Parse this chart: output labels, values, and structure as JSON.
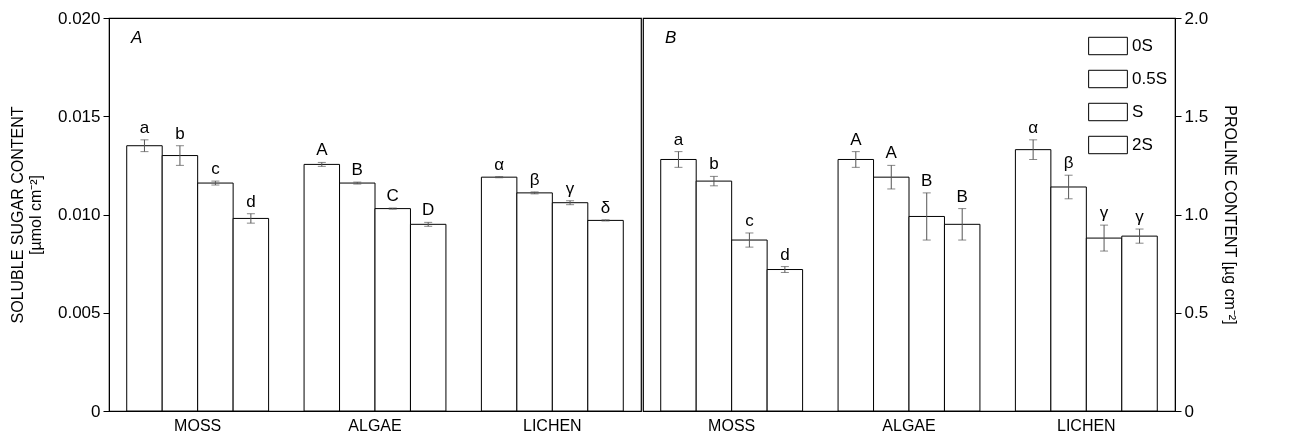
{
  "chart_data": [
    {
      "type": "bar",
      "ylabel": "SOLUBLE SUGAR CONTENT\n[µmol cm⁻²]",
      "categories": [
        "MOSS",
        "ALGAE",
        "LICHEN"
      ],
      "series": [
        {
          "color": "#ffffff",
          "values": [
            0.0135,
            0.01255,
            0.0119
          ],
          "errors": [
            0.0003,
            0.0001,
            3e-05
          ],
          "value_labels": [
            "a",
            "A",
            "α"
          ]
        },
        {
          "color": "#ffffff",
          "values": [
            0.013,
            0.0116,
            0.0111
          ],
          "errors": [
            0.0005,
            5e-05,
            5e-05
          ],
          "value_labels": [
            "b",
            "B",
            "β"
          ]
        },
        {
          "color": "#ffffff",
          "values": [
            0.0116,
            0.0103,
            0.0106
          ],
          "errors": [
            0.0001,
            3e-05,
            0.0001
          ],
          "value_labels": [
            "c",
            "C",
            "γ"
          ]
        },
        {
          "color": "#ffffff",
          "values": [
            0.0098,
            0.0095,
            0.0097
          ],
          "errors": [
            0.00024,
            0.0001,
            3e-05
          ],
          "value_labels": [
            "d",
            "D",
            "δ"
          ]
        }
      ],
      "ylim": [
        0,
        0.02
      ],
      "yticks": [
        0,
        0.005,
        {
          "value": 0.01,
          "label": "0.010"
        },
        0.015,
        {
          "value": 0.02,
          "label": "0.020"
        }
      ],
      "annotations": [
        "A"
      ]
    },
    {
      "type": "bar",
      "y2label": "PROLINE CONTENT  [µg cm⁻²]",
      "categories": [
        "MOSS",
        "ALGAE",
        "LICHEN"
      ],
      "series": [
        {
          "name": "0S",
          "axis": "y2",
          "color": "#ffffff",
          "values": [
            1.28,
            1.28,
            1.33
          ],
          "errors": [
            0.04,
            0.04,
            0.05
          ],
          "value_labels": [
            "a",
            "A",
            "α"
          ]
        },
        {
          "name": "0.5S",
          "axis": "y2",
          "color": "#ffffff",
          "values": [
            1.17,
            1.19,
            1.14
          ],
          "errors": [
            0.024,
            0.06,
            0.06
          ],
          "value_labels": [
            "b",
            "A",
            "β"
          ]
        },
        {
          "name": "S",
          "axis": "y2",
          "color": "#ffffff",
          "values": [
            0.87,
            0.99,
            0.88
          ],
          "errors": [
            0.036,
            0.12,
            0.066
          ],
          "value_labels": [
            "c",
            "B",
            "γ"
          ]
        },
        {
          "name": "2S",
          "axis": "y2",
          "color": "#ffffff",
          "values": [
            0.72,
            0.95,
            0.89
          ],
          "errors": [
            0.015,
            0.08,
            0.036
          ],
          "value_labels": [
            "d",
            "B",
            "γ"
          ]
        }
      ],
      "y2lim": [
        0,
        2
      ],
      "y2ticks": [
        0,
        0.5,
        {
          "value": 1,
          "label": "1.0"
        },
        1.5,
        {
          "value": 2,
          "label": "2.0"
        }
      ],
      "legend": "top right",
      "annotations": [
        "B"
      ]
    }
  ]
}
